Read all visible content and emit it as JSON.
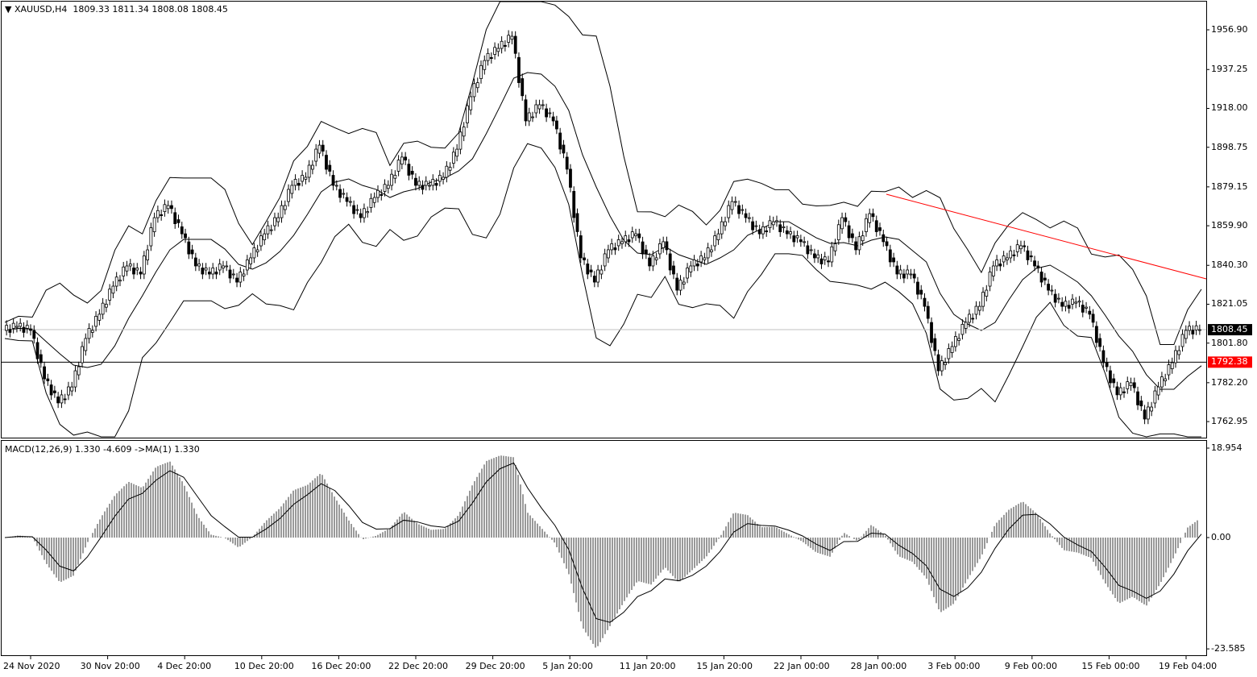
{
  "header": {
    "symbol": "XAUUSD,H4",
    "open": "1809.33",
    "high": "1811.34",
    "low": "1808.08",
    "close": "1808.45"
  },
  "macd_header": {
    "label": "MACD(12,26,9) 1.330 -4.609  ->MA(1) 1.330"
  },
  "chart_data": [
    {
      "type": "candlestick",
      "title": "XAUUSD,H4",
      "ylim": [
        1752,
        1975
      ],
      "price_ticks": [
        "1956.90",
        "1937.25",
        "1918.00",
        "1898.75",
        "1879.15",
        "1859.90",
        "1840.30",
        "1821.05",
        "1801.80",
        "1782.20",
        "1762.95"
      ],
      "x_ticks": [
        "24 Nov 2020",
        "30 Nov 20:00",
        "4 Dec 20:00",
        "10 Dec 20:00",
        "16 Dec 20:00",
        "22 Dec 20:00",
        "29 Dec 20:00",
        "5 Jan 20:00",
        "11 Jan 20:00",
        "15 Jan 20:00",
        "22 Jan 00:00",
        "28 Jan 00:00",
        "3 Feb 00:00",
        "9 Feb 00:00",
        "15 Feb 00:00",
        "19 Feb 04:00"
      ],
      "close": [
        1808.1,
        1810.1,
        1808.1,
        1784.1,
        1772.2,
        1780.1,
        1804.1,
        1816.1,
        1830.0,
        1840.0,
        1836.0,
        1863.9,
        1869.9,
        1855.9,
        1840.0,
        1836.0,
        1840.0,
        1832.0,
        1844.0,
        1855.9,
        1863.9,
        1879.9,
        1883.9,
        1899.8,
        1879.9,
        1871.9,
        1863.9,
        1873.9,
        1879.9,
        1893.9,
        1879.9,
        1879.9,
        1883.9,
        1897.8,
        1923.8,
        1941.7,
        1947.7,
        1953.7,
        1911.8,
        1919.8,
        1911.8,
        1887.9,
        1844.0,
        1832.0,
        1848.0,
        1852.0,
        1855.9,
        1840.0,
        1852.0,
        1828.0,
        1840.0,
        1844.0,
        1855.9,
        1871.9,
        1863.9,
        1855.9,
        1861.9,
        1855.9,
        1852.0,
        1844.0,
        1842.0,
        1863.9,
        1848.0,
        1865.9,
        1852.0,
        1836.0,
        1836.0,
        1820.0,
        1788.1,
        1800.1,
        1812.1,
        1820.0,
        1840.0,
        1844.0,
        1850.0,
        1840.0,
        1828.0,
        1820.0,
        1822.1,
        1816.1,
        1792.1,
        1776.2,
        1782.2,
        1764.2,
        1780.1,
        1792.1,
        1808.1,
        1808.45
      ],
      "last_price": "1808.45",
      "horizontal_line": {
        "price": "1792.38",
        "label_color": "#ff0000"
      },
      "trendline": {
        "from": 1875.5,
        "to": 1833.6,
        "color": "#ff0000"
      },
      "indicators": [
        "Bollinger Bands"
      ]
    },
    {
      "type": "histogram+line",
      "title": "MACD(12,26,9)",
      "ylim": [
        -23.585,
        18.954
      ],
      "ticks": [
        "18.954",
        "0.00",
        "-23.585"
      ]
    }
  ]
}
